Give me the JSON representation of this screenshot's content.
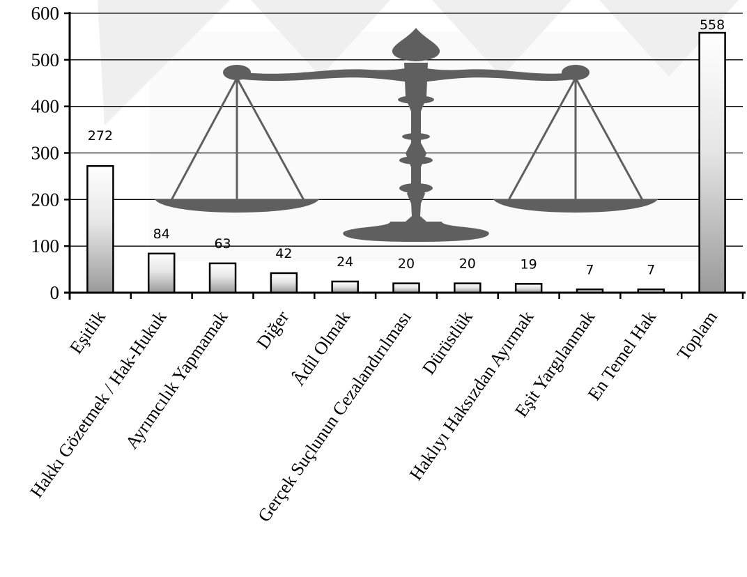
{
  "chart_data": {
    "type": "bar",
    "title": "",
    "xlabel": "",
    "ylabel": "",
    "ylim": [
      0,
      600
    ],
    "yticks": [
      0,
      100,
      200,
      300,
      400,
      500,
      600
    ],
    "grid": true,
    "legend": "none",
    "categories": [
      "Eşitlik",
      "Hakkı Gözetmek / Hak-Hukuk",
      "Ayrımcılık Yapmamak",
      "Diğer",
      "Âdil Olmak",
      "Gerçek Suçlunun Cezalandırılması",
      "Dürüstlük",
      "Haklıyı Haksızdan Ayırmak",
      "Eşit Yargılanmak",
      "En Temel Hak",
      "Toplam"
    ],
    "values": [
      272,
      84,
      63,
      42,
      24,
      20,
      20,
      19,
      7,
      7,
      558
    ],
    "data_labels": [
      "272",
      "84",
      "63",
      "42",
      "24",
      "20",
      "20",
      "19",
      "7",
      "7",
      "558"
    ]
  },
  "colors": {
    "bar_light": "#ffffff",
    "bar_dark": "#9a9a9a",
    "bar_outline": "#000000",
    "gridline": "#000000",
    "background_image": "#5f5f5f"
  },
  "background_icon": "scales-of-justice-icon"
}
